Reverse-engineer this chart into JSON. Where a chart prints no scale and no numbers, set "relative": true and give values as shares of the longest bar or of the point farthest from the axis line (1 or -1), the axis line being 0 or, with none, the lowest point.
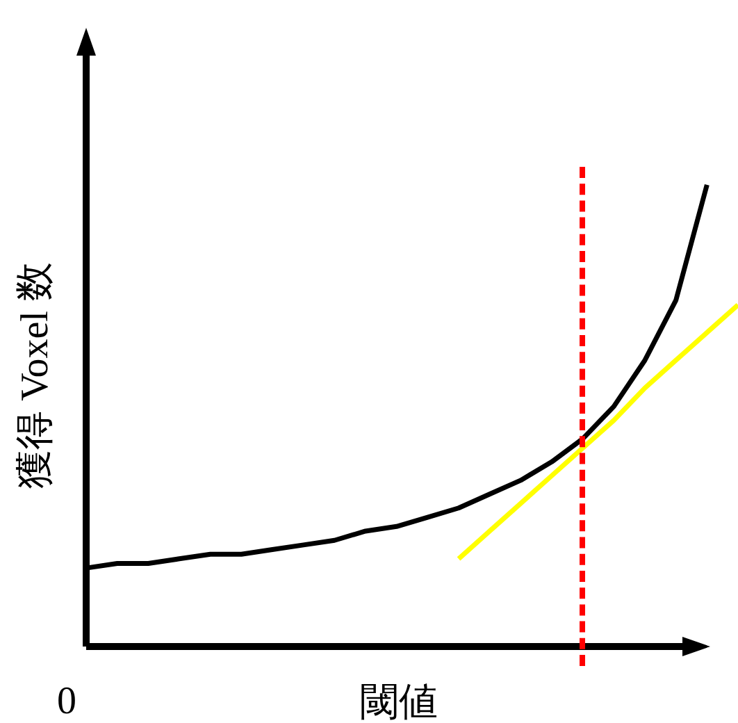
{
  "chart_data": {
    "type": "line",
    "relative": true,
    "xlabel": "閾値",
    "ylabel": "獲得 Voxel 数",
    "annotations": [
      "0"
    ],
    "categories": [
      null,
      null,
      null,
      null,
      null,
      null,
      null,
      null,
      null,
      null,
      null,
      null,
      null,
      null,
      null,
      null,
      null,
      null,
      null,
      null,
      null,
      null
    ],
    "series": [
      {
        "color": "#000000",
        "values": [
          0.17,
          0.18,
          0.18,
          0.19,
          0.2,
          0.2,
          0.21,
          0.22,
          0.23,
          0.25,
          0.26,
          0.28,
          0.3,
          0.33,
          0.36,
          0.4,
          0.45,
          0.52,
          0.62,
          0.75,
          1,
          null
        ]
      },
      {
        "color": "#ffff00",
        "values": [
          null,
          null,
          null,
          null,
          null,
          null,
          null,
          null,
          null,
          null,
          null,
          null,
          0.19,
          0.25,
          0.31,
          0.37,
          0.43,
          0.49,
          0.56,
          0.62,
          0.68,
          0.74
        ]
      }
    ],
    "legend": false,
    "marker": "none",
    "line_style": "solid"
  }
}
